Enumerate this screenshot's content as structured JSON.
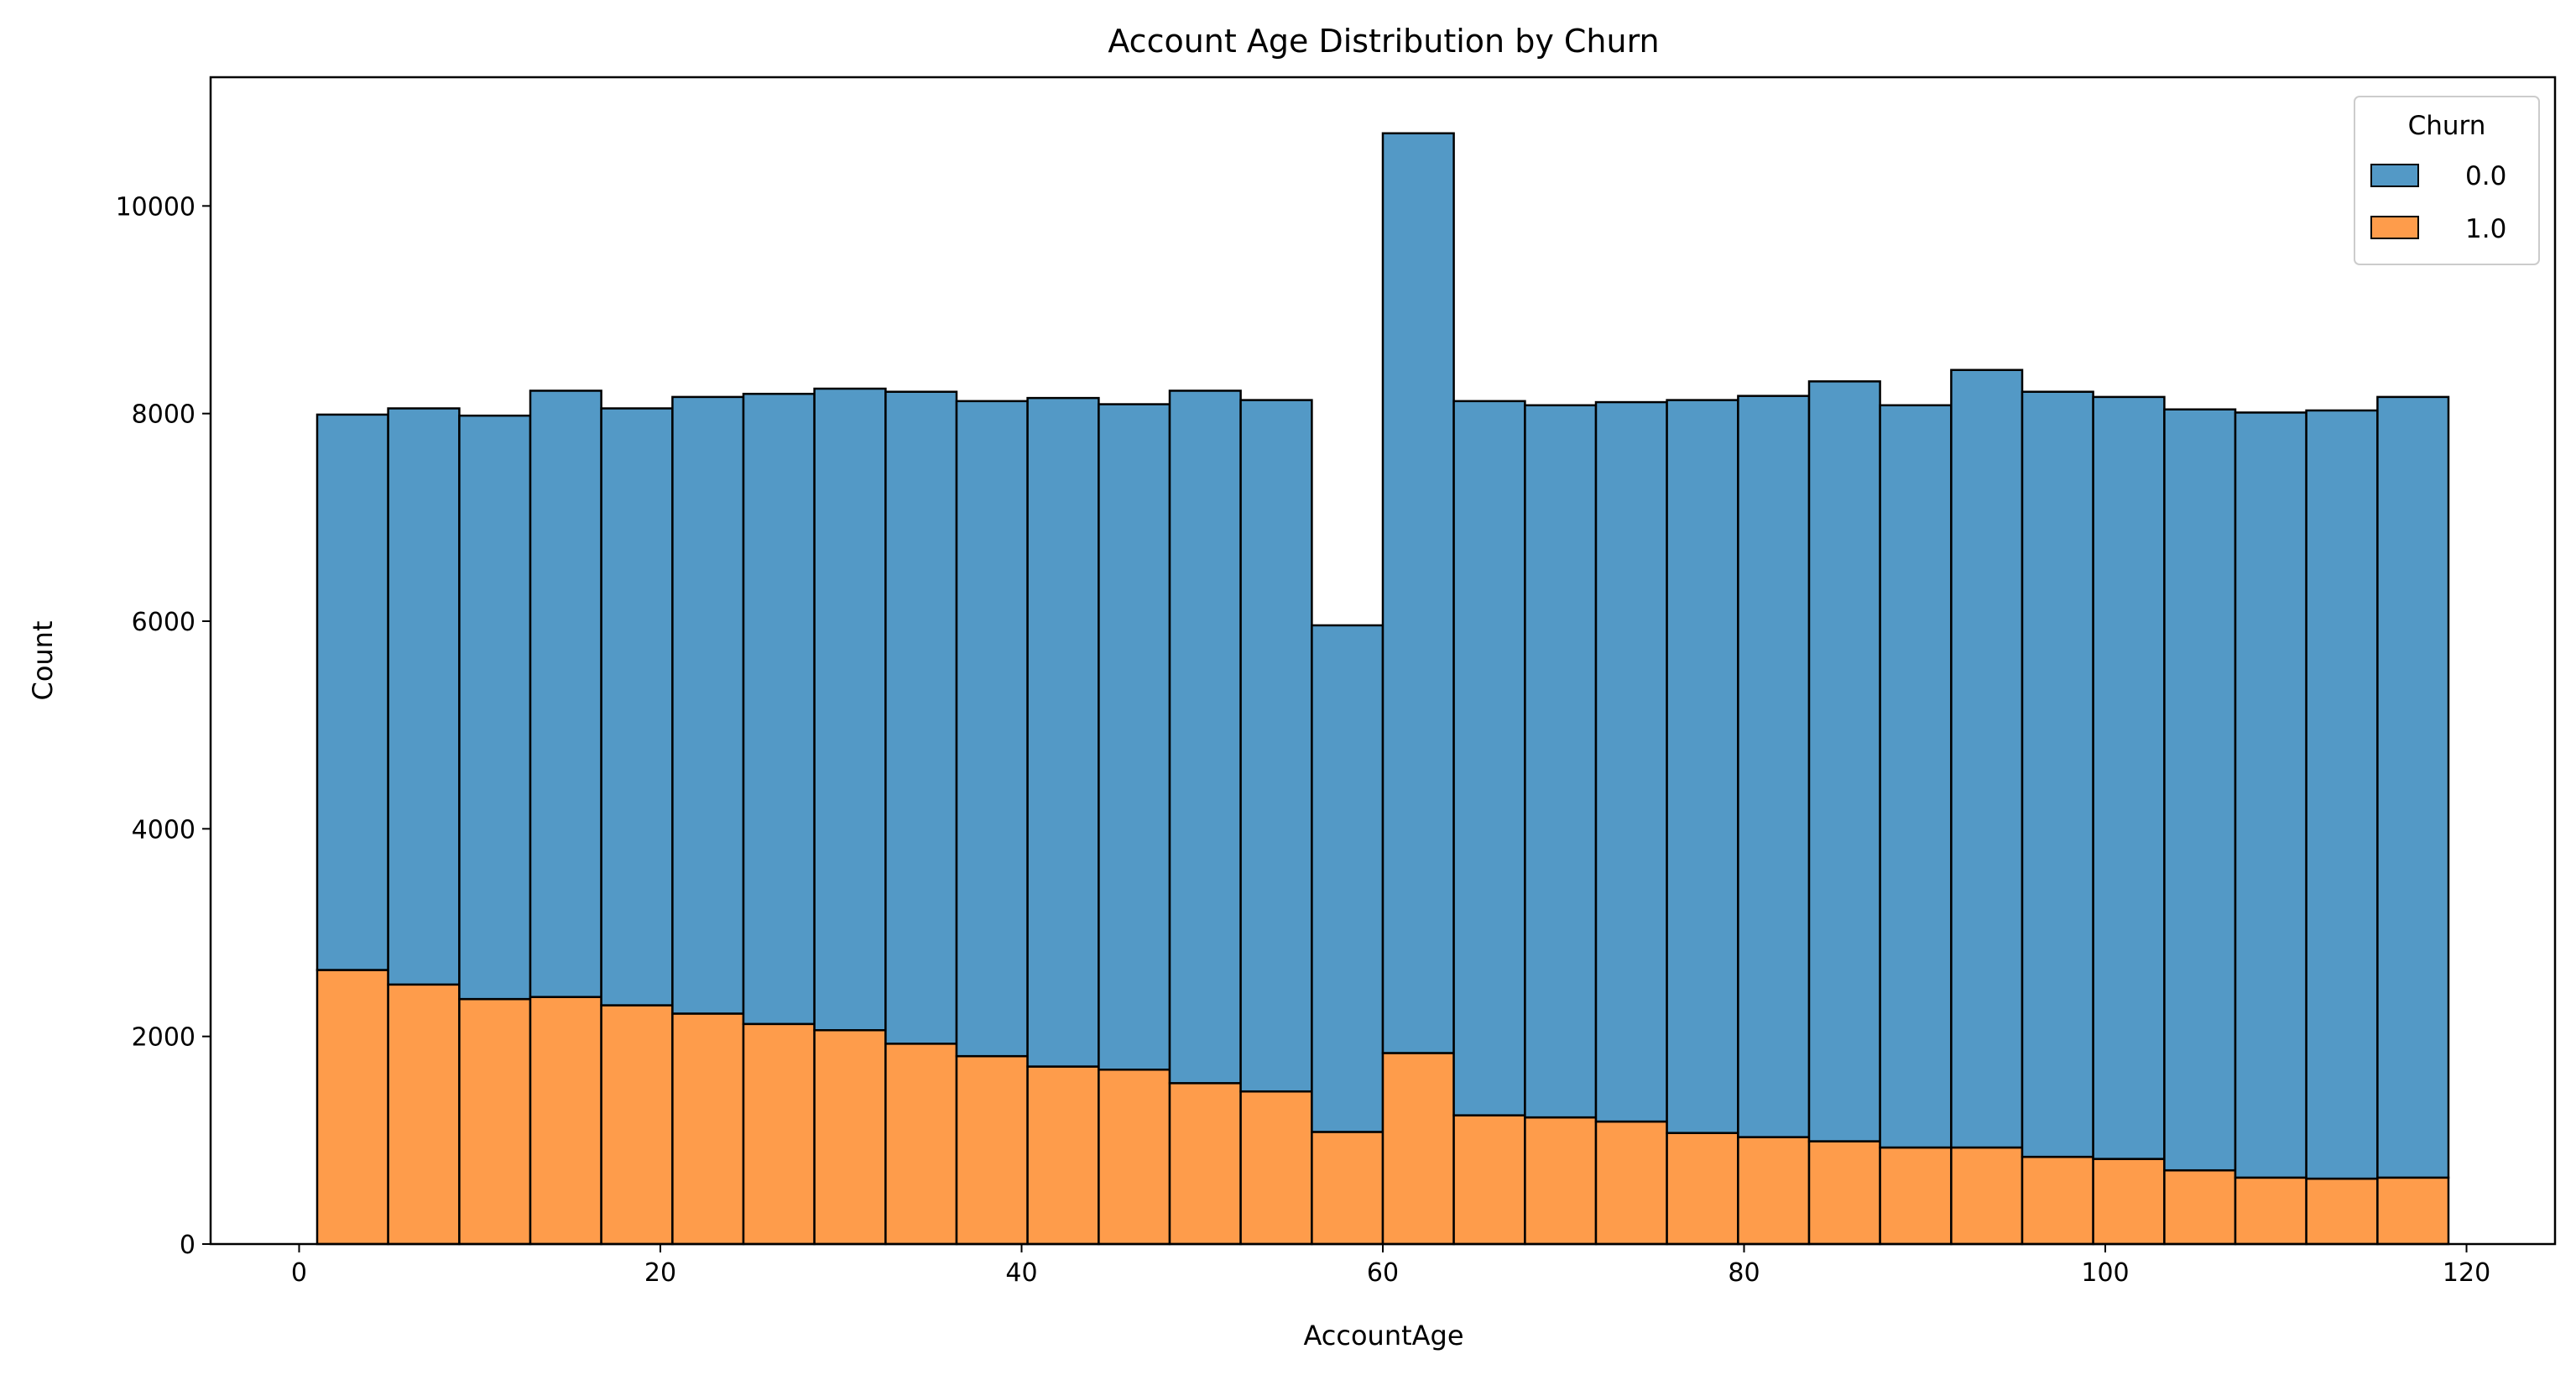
{
  "chart_data": {
    "type": "bar",
    "subtype": "stacked-histogram",
    "title": "Account Age Distribution by Churn",
    "xlabel": "AccountAge",
    "ylabel": "Count",
    "xlim": [
      -4.9,
      124.9
    ],
    "ylim": [
      0,
      11240
    ],
    "xticks": [
      0,
      20,
      40,
      60,
      80,
      100,
      120
    ],
    "yticks": [
      0,
      2000,
      4000,
      6000,
      8000,
      10000
    ],
    "grid": false,
    "legend": {
      "title": "Churn",
      "position": "top-right"
    },
    "bin_edges": [
      1.0,
      4.93,
      8.87,
      12.8,
      16.73,
      20.67,
      24.6,
      28.53,
      32.47,
      36.4,
      40.33,
      44.27,
      48.2,
      52.13,
      56.07,
      60.0,
      63.93,
      67.87,
      71.8,
      75.73,
      79.67,
      83.6,
      87.53,
      91.47,
      95.4,
      99.33,
      103.27,
      107.2,
      111.13,
      115.07,
      119.0
    ],
    "series": [
      {
        "name": "0.0",
        "color": "#5399c6",
        "values": [
          5350,
          5550,
          5620,
          5840,
          5750,
          5940,
          6070,
          6180,
          6280,
          6310,
          6440,
          6410,
          6670,
          6660,
          4880,
          8860,
          6880,
          6860,
          6930,
          7060,
          7140,
          7320,
          7150,
          7490,
          7370,
          7340,
          7330,
          7370,
          7400,
          7520
        ]
      },
      {
        "name": "1.0",
        "color": "#fe9c4b",
        "values": [
          2640,
          2500,
          2360,
          2380,
          2300,
          2220,
          2120,
          2060,
          1930,
          1810,
          1710,
          1680,
          1550,
          1470,
          1080,
          1840,
          1240,
          1220,
          1180,
          1070,
          1030,
          990,
          930,
          930,
          840,
          820,
          710,
          640,
          630,
          640
        ]
      }
    ]
  }
}
